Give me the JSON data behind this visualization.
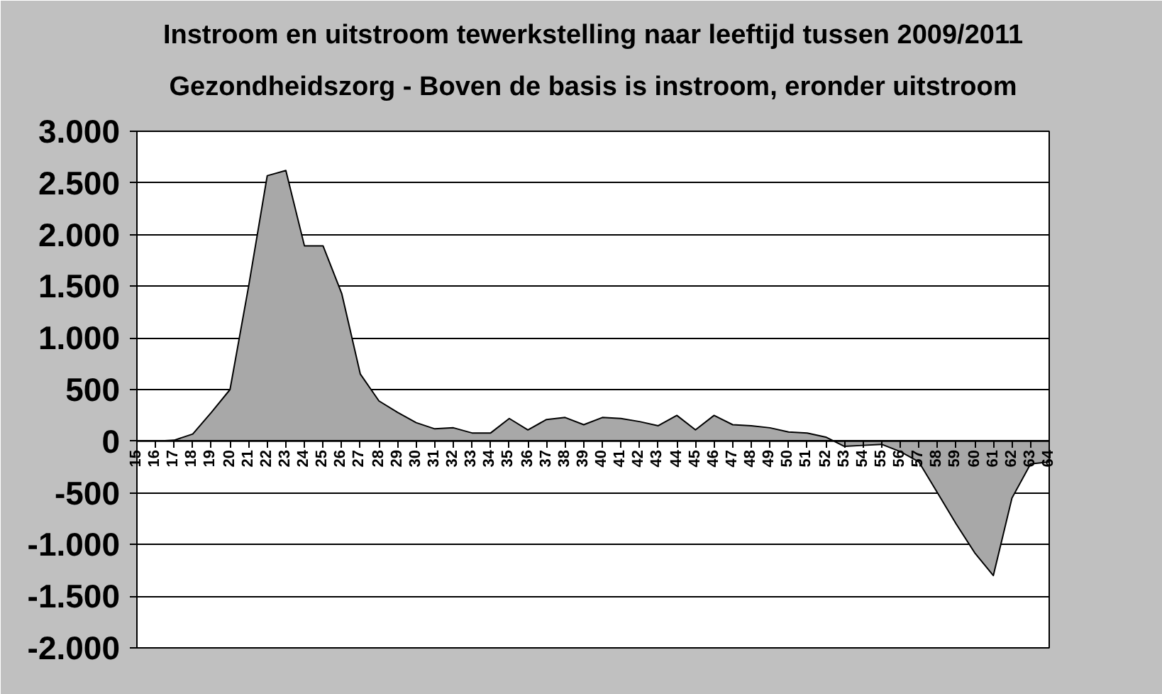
{
  "chart_data": {
    "type": "area",
    "title": "Instroom en uitstroom tewerkstelling naar leeftijd tussen 2009/2011",
    "subtitle": "Gezondheidszorg - Boven de basis is instroom, eronder uitstroom",
    "categories": [
      "15",
      "16",
      "17",
      "18",
      "19",
      "20",
      "21",
      "22",
      "23",
      "24",
      "25",
      "26",
      "27",
      "28",
      "29",
      "30",
      "31",
      "32",
      "33",
      "34",
      "35",
      "36",
      "37",
      "38",
      "39",
      "40",
      "41",
      "42",
      "43",
      "44",
      "45",
      "46",
      "47",
      "48",
      "49",
      "50",
      "51",
      "52",
      "53",
      "54",
      "55",
      "56",
      "57",
      "58",
      "59",
      "60",
      "61",
      "62",
      "63",
      "64"
    ],
    "values": [
      0,
      0,
      10,
      70,
      280,
      500,
      1500,
      2570,
      2620,
      1890,
      1890,
      1430,
      650,
      390,
      280,
      180,
      120,
      130,
      80,
      80,
      220,
      110,
      210,
      230,
      160,
      230,
      220,
      190,
      150,
      250,
      110,
      250,
      160,
      150,
      130,
      90,
      80,
      40,
      -50,
      -40,
      -30,
      -100,
      -200,
      -500,
      -800,
      -1080,
      -1300,
      -550,
      -220,
      -200
    ],
    "color": "#a8a8a8",
    "ylim": [
      -2000,
      3000
    ],
    "yticks": [
      {
        "value": -2000,
        "label": "-2.000"
      },
      {
        "value": -1500,
        "label": "-1.500"
      },
      {
        "value": -1000,
        "label": "-1.000"
      },
      -500,
      0,
      500,
      {
        "value": 1000,
        "label": "1.000"
      },
      {
        "value": 1500,
        "label": "1.500"
      },
      {
        "value": 2000,
        "label": "2.000"
      },
      {
        "value": 2500,
        "label": "2.500"
      },
      {
        "value": 3000,
        "label": "3.000"
      }
    ],
    "grid": "y"
  }
}
